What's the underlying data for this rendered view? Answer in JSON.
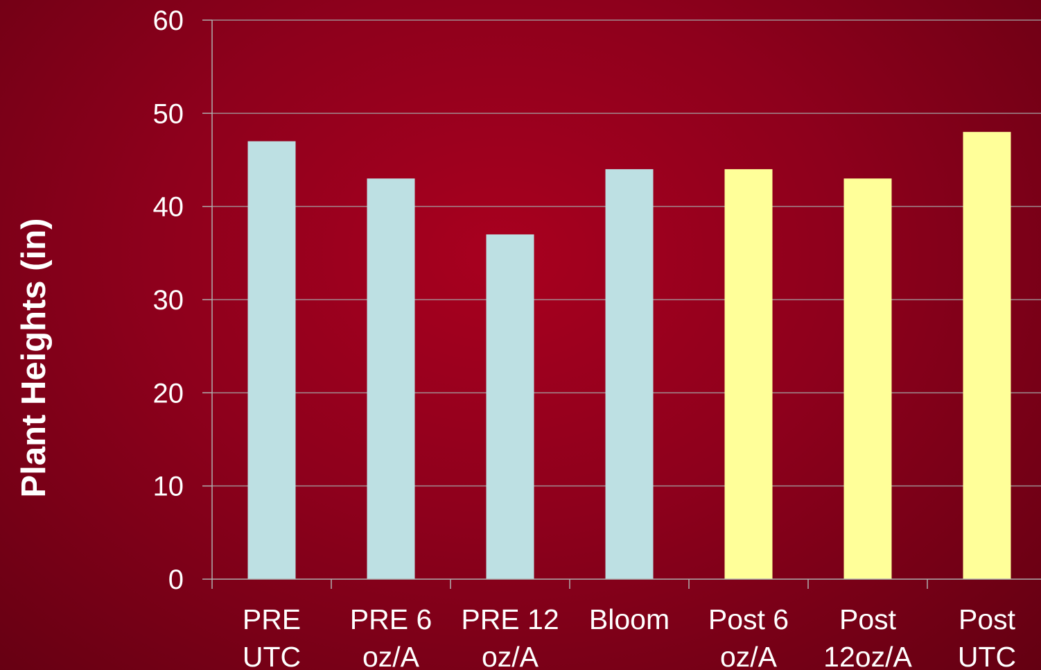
{
  "chart_data": {
    "type": "bar",
    "title": "",
    "xlabel": "",
    "ylabel": "Plant Heights (in)",
    "ylim": [
      0,
      60
    ],
    "yticks": [
      0,
      10,
      20,
      30,
      40,
      50,
      60
    ],
    "grid": true,
    "legend": "none",
    "categories": [
      [
        "PRE",
        "UTC"
      ],
      [
        "PRE 6",
        "oz/A"
      ],
      [
        "PRE 12",
        "oz/A"
      ],
      [
        "Bloom"
      ],
      [
        "Post 6",
        "oz/A"
      ],
      [
        "Post",
        "12oz/A"
      ],
      [
        "Post",
        "UTC"
      ]
    ],
    "values": [
      47,
      43,
      37,
      44,
      44,
      43,
      48
    ],
    "bar_colors": [
      "#bde0e3",
      "#bde0e3",
      "#bde0e3",
      "#bde0e3",
      "#ffff99",
      "#ffff99",
      "#ffff99"
    ],
    "colors": {
      "background": "#8e001c",
      "gridline": "#a5a5a5",
      "text": "#ffffff"
    }
  }
}
